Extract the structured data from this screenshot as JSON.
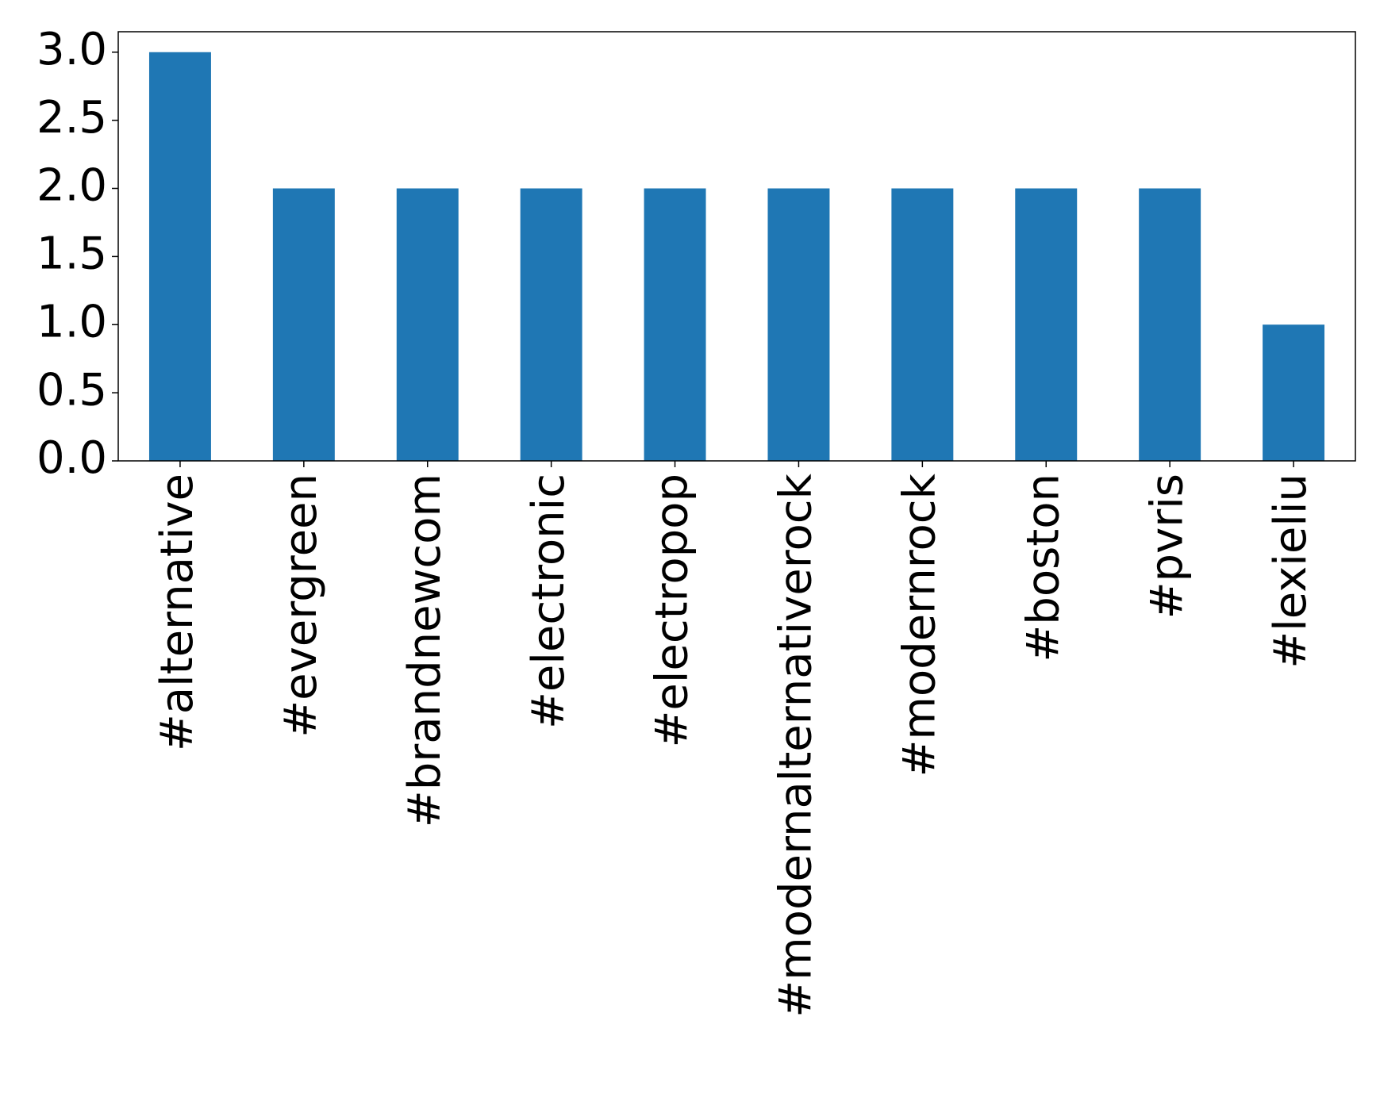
{
  "chart_data": {
    "type": "bar",
    "categories": [
      "#alternative",
      "#evergreen",
      "#brandnewcom",
      "#electronic",
      "#electropop",
      "#modernalternativerock",
      "#modernrock",
      "#boston",
      "#pvris",
      "#lexieliu"
    ],
    "values": [
      3,
      2,
      2,
      2,
      2,
      2,
      2,
      2,
      2,
      1
    ],
    "color": "#1f77b4",
    "ylim": [
      0,
      3.15
    ],
    "yticks": [
      {
        "value": 0,
        "label": "0.0"
      },
      0.5,
      {
        "value": 1,
        "label": "1.0"
      },
      1.5,
      {
        "value": 2,
        "label": "2.0"
      },
      2.5,
      {
        "value": 3,
        "label": "3.0"
      }
    ],
    "grid": false
  }
}
